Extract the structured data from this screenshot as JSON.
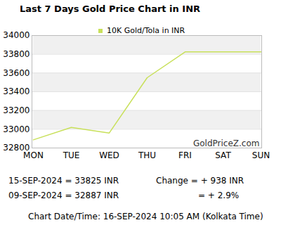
{
  "chart_data": {
    "type": "line",
    "title": "Last 7 Days Gold Price Chart in INR",
    "categories": [
      "MON",
      "TUE",
      "WED",
      "THU",
      "FRI",
      "SAT",
      "SUN"
    ],
    "series": [
      {
        "name": "10K Gold/Tola in INR",
        "color": "#c8e05a",
        "values": [
          32887,
          33020,
          32960,
          33550,
          33825,
          33825,
          33825
        ]
      }
    ],
    "ylim": [
      32800,
      34000
    ],
    "yticks": [
      32800,
      33000,
      33200,
      33400,
      33600,
      33800,
      34000
    ],
    "grid": true,
    "legend": "top",
    "annotations": [
      "GoldPriceZ.com",
      "15-SEP-2024 = 33825 INR",
      "Change   = + 938 INR",
      "09-SEP-2024 = 32887 INR",
      "= + 2.9%",
      "Chart Date/Time: 16-SEP-2024 10:05 AM (Kolkata Time)"
    ]
  }
}
